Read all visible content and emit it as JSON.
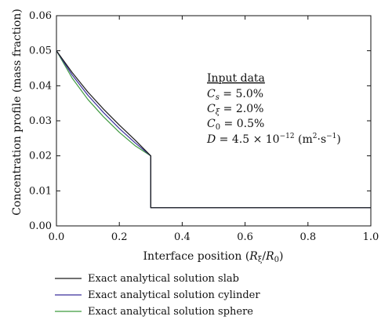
{
  "chart_data": {
    "type": "line",
    "xlabel": "Interface position (R_ξ/R_0)",
    "ylabel": "Concentration profile (mass fraction)",
    "xlim": [
      0.0,
      1.0
    ],
    "ylim": [
      0.0,
      0.06
    ],
    "x_ticks": [
      "0.0",
      "0.2",
      "0.4",
      "0.6",
      "0.8",
      "1.0"
    ],
    "y_ticks": [
      "0.00",
      "0.01",
      "0.02",
      "0.03",
      "0.04",
      "0.05",
      "0.06"
    ],
    "grid": false,
    "legend_position": "below",
    "annotation": {
      "heading": "Input data",
      "lines": [
        "C_s = 5.0%",
        "C_ξ = 2.0%",
        "C_0 = 0.5%",
        "D = 4.5 × 10^-12 (m²·s^-1)"
      ]
    },
    "series": [
      {
        "name": "Exact analytical solution slab",
        "color": "#1a1a1a",
        "x": [
          0.0,
          0.05,
          0.1,
          0.15,
          0.2,
          0.25,
          0.3,
          0.3,
          1.0
        ],
        "y": [
          0.05,
          0.0438,
          0.0382,
          0.0333,
          0.0288,
          0.0245,
          0.02,
          0.0052,
          0.0052
        ]
      },
      {
        "name": "Exact analytical solution cylinder",
        "color": "#3a2f9a",
        "x": [
          0.0,
          0.05,
          0.1,
          0.15,
          0.2,
          0.25,
          0.3,
          0.3,
          1.0
        ],
        "y": [
          0.05,
          0.0431,
          0.0373,
          0.0323,
          0.0278,
          0.0237,
          0.02,
          0.0052,
          0.0052
        ]
      },
      {
        "name": "Exact analytical solution sphere",
        "color": "#3f9a3f",
        "x": [
          0.0,
          0.05,
          0.1,
          0.15,
          0.2,
          0.25,
          0.3,
          0.3,
          1.0
        ],
        "y": [
          0.05,
          0.0422,
          0.0361,
          0.0311,
          0.0267,
          0.0229,
          0.02,
          0.0052,
          0.0052
        ]
      }
    ]
  }
}
